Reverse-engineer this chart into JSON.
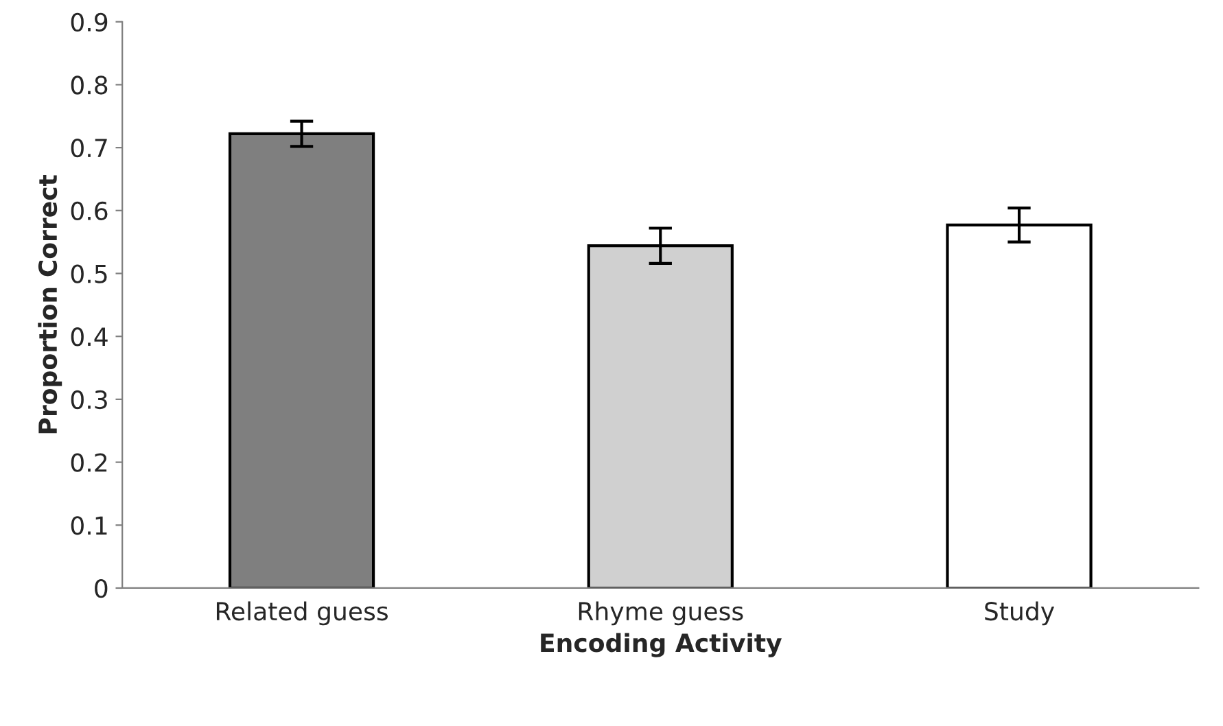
{
  "chart_data": {
    "type": "bar",
    "xlabel": "Encoding Activity",
    "ylabel": "Proportion Correct",
    "categories": [
      "Related guess",
      "Rhyme guess",
      "Study"
    ],
    "values": [
      0.722,
      0.544,
      0.577
    ],
    "errors": [
      0.02,
      0.028,
      0.027
    ],
    "colors": [
      "#7f7f7f",
      "#d0d0d0",
      "#ffffff"
    ],
    "ylim": [
      0,
      0.9
    ],
    "yticks": [
      0,
      0.1,
      0.2,
      0.3,
      0.4,
      0.5,
      0.6,
      0.7,
      0.8,
      0.9
    ],
    "grid": false,
    "legend": false
  }
}
